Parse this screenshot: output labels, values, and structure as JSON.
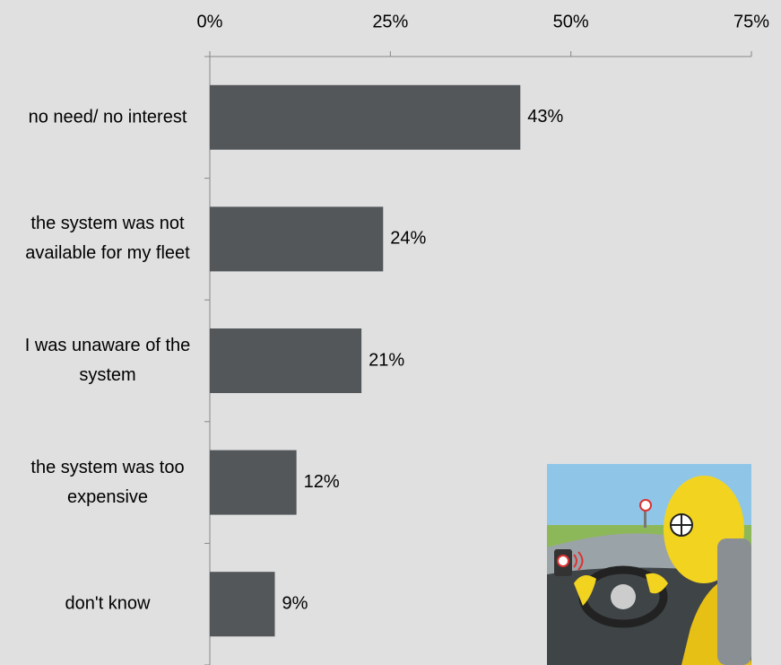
{
  "chart_data": {
    "type": "bar",
    "orientation": "horizontal",
    "categories": [
      "no need/ no interest",
      "the system was not available for my fleet",
      "I was unaware of the system",
      "the system was too expensive",
      "don't know"
    ],
    "values": [
      43,
      24,
      21,
      12,
      9
    ],
    "value_labels": [
      "43%",
      "24%",
      "21%",
      "12%",
      "9%"
    ],
    "color": "#53575a",
    "xlim": [
      0,
      75
    ],
    "xticks": [
      {
        "value": 0,
        "label": "0%"
      },
      {
        "value": 25,
        "label": "25%"
      },
      {
        "value": 50,
        "label": "50%"
      },
      {
        "value": 75,
        "label": "75%"
      }
    ],
    "grid": false
  }
}
